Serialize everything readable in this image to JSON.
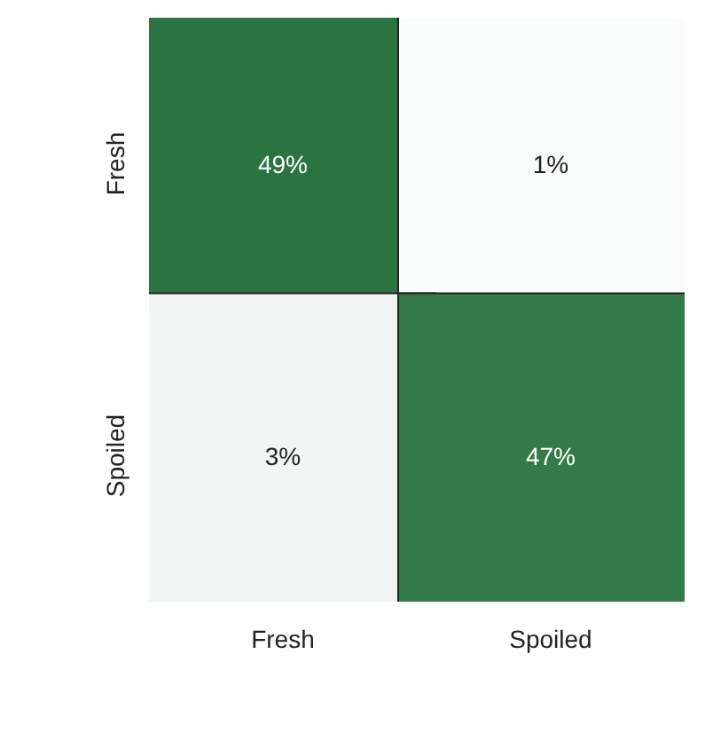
{
  "chart_data": {
    "type": "heatmap",
    "categories": [
      "Fresh",
      "Spoiled"
    ],
    "y_categories": [
      "Fresh",
      "Spoiled"
    ],
    "cells": [
      [
        49,
        1
      ],
      [
        3,
        47
      ]
    ],
    "cell_labels": [
      [
        "49%",
        "1%"
      ],
      [
        "3%",
        "47%"
      ]
    ],
    "color": "#2b7340"
  }
}
